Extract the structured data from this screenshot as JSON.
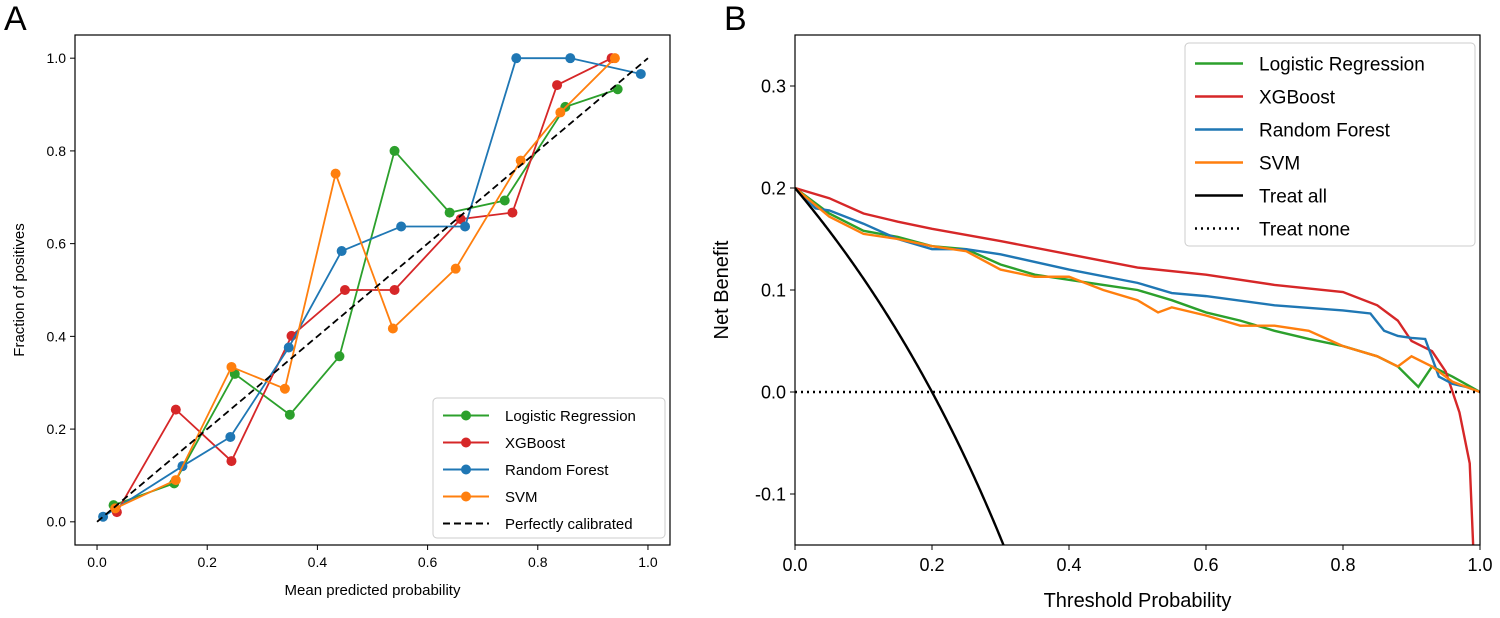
{
  "chart_data": [
    {
      "panel_label": "A",
      "type": "line",
      "title": "",
      "xlabel": "Mean predicted probability",
      "ylabel": "Fraction of positives",
      "xlim": [
        -0.04,
        1.04
      ],
      "ylim": [
        -0.05,
        1.05
      ],
      "xticks": [
        "0.0",
        "0.2",
        "0.4",
        "0.6",
        "0.8",
        "1.0"
      ],
      "yticks": [
        "0.0",
        "0.2",
        "0.4",
        "0.6",
        "0.8",
        "1.0"
      ],
      "legend_position": "lower-right",
      "series": [
        {
          "name": "Logistic Regression",
          "color": "#2ca02c",
          "marker": "circle",
          "x": [
            0.03,
            0.14,
            0.25,
            0.35,
            0.44,
            0.54,
            0.64,
            0.74,
            0.85,
            0.945
          ],
          "y": [
            0.036,
            0.083,
            0.319,
            0.231,
            0.357,
            0.8,
            0.667,
            0.693,
            0.895,
            0.933
          ]
        },
        {
          "name": "XGBoost",
          "color": "#d62728",
          "marker": "circle",
          "x": [
            0.036,
            0.143,
            0.244,
            0.353,
            0.45,
            0.54,
            0.66,
            0.754,
            0.835,
            0.934
          ],
          "y": [
            0.021,
            0.242,
            0.131,
            0.401,
            0.5,
            0.5,
            0.653,
            0.667,
            0.942,
            1.0
          ]
        },
        {
          "name": "Random Forest",
          "color": "#1f77b4",
          "marker": "circle",
          "x": [
            0.011,
            0.155,
            0.242,
            0.348,
            0.444,
            0.552,
            0.668,
            0.761,
            0.859,
            0.987
          ],
          "y": [
            0.011,
            0.12,
            0.183,
            0.376,
            0.584,
            0.637,
            0.637,
            1.0,
            1.0,
            0.966
          ]
        },
        {
          "name": "SVM",
          "color": "#ff7f0e",
          "marker": "circle",
          "x": [
            0.033,
            0.143,
            0.244,
            0.341,
            0.433,
            0.537,
            0.651,
            0.769,
            0.841,
            0.94
          ],
          "y": [
            0.029,
            0.09,
            0.334,
            0.287,
            0.751,
            0.417,
            0.546,
            0.779,
            0.883,
            1.0
          ]
        },
        {
          "name": "Perfectly calibrated",
          "color": "#000000",
          "dash": "dashed",
          "x": [
            0,
            1
          ],
          "y": [
            0,
            1
          ]
        }
      ]
    },
    {
      "panel_label": "B",
      "type": "line",
      "title": "",
      "xlabel": "Threshold Probability",
      "ylabel": "Net Benefit",
      "xlim": [
        0,
        1
      ],
      "ylim": [
        -0.15,
        0.35
      ],
      "xticks": [
        "0.0",
        "0.2",
        "0.4",
        "0.6",
        "0.8",
        "1.0"
      ],
      "yticks": [
        "-0.1",
        "0.0",
        "0.1",
        "0.2",
        "0.3"
      ],
      "legend_position": "upper-right",
      "prevalence": 0.2,
      "series": [
        {
          "name": "Logistic Regression",
          "color": "#2ca02c",
          "x": [
            0,
            0.05,
            0.1,
            0.15,
            0.2,
            0.25,
            0.3,
            0.35,
            0.4,
            0.45,
            0.5,
            0.55,
            0.6,
            0.65,
            0.7,
            0.75,
            0.8,
            0.85,
            0.88,
            0.91,
            0.93,
            0.96,
            1.0
          ],
          "y": [
            0.2,
            0.175,
            0.158,
            0.152,
            0.143,
            0.14,
            0.125,
            0.115,
            0.11,
            0.105,
            0.1,
            0.09,
            0.078,
            0.07,
            0.06,
            0.052,
            0.045,
            0.035,
            0.025,
            0.005,
            0.025,
            0.015,
            0
          ]
        },
        {
          "name": "XGBoost",
          "color": "#d62728",
          "x": [
            0,
            0.05,
            0.1,
            0.15,
            0.2,
            0.3,
            0.4,
            0.5,
            0.6,
            0.7,
            0.8,
            0.85,
            0.88,
            0.9,
            0.93,
            0.95,
            0.97,
            0.985,
            0.99
          ],
          "y": [
            0.2,
            0.19,
            0.175,
            0.167,
            0.16,
            0.148,
            0.135,
            0.122,
            0.115,
            0.105,
            0.098,
            0.085,
            0.07,
            0.05,
            0.04,
            0.02,
            -0.02,
            -0.07,
            -0.15
          ]
        },
        {
          "name": "Random Forest",
          "color": "#1f77b4",
          "x": [
            0,
            0.03,
            0.05,
            0.1,
            0.15,
            0.2,
            0.25,
            0.3,
            0.4,
            0.5,
            0.55,
            0.6,
            0.7,
            0.8,
            0.84,
            0.86,
            0.88,
            0.9,
            0.92,
            0.94,
            0.96,
            0.98,
            1.0
          ],
          "y": [
            0.2,
            0.18,
            0.178,
            0.165,
            0.15,
            0.14,
            0.14,
            0.135,
            0.12,
            0.107,
            0.097,
            0.094,
            0.085,
            0.08,
            0.077,
            0.06,
            0.055,
            0.053,
            0.052,
            0.015,
            0.008,
            0.005,
            0
          ]
        },
        {
          "name": "SVM",
          "color": "#ff7f0e",
          "x": [
            0,
            0.05,
            0.1,
            0.15,
            0.2,
            0.25,
            0.3,
            0.35,
            0.4,
            0.45,
            0.5,
            0.53,
            0.55,
            0.6,
            0.65,
            0.7,
            0.75,
            0.8,
            0.85,
            0.88,
            0.9,
            0.93,
            0.96,
            1.0
          ],
          "y": [
            0.2,
            0.172,
            0.155,
            0.15,
            0.143,
            0.138,
            0.12,
            0.113,
            0.113,
            0.1,
            0.09,
            0.078,
            0.083,
            0.075,
            0.065,
            0.065,
            0.06,
            0.045,
            0.035,
            0.025,
            0.035,
            0.025,
            0.01,
            0
          ]
        },
        {
          "name": "Treat all",
          "color": "#000000",
          "kind": "treat-all"
        },
        {
          "name": "Treat none",
          "color": "#000000",
          "dash": "dotted",
          "x": [
            0,
            1
          ],
          "y": [
            0,
            0
          ]
        }
      ]
    }
  ]
}
